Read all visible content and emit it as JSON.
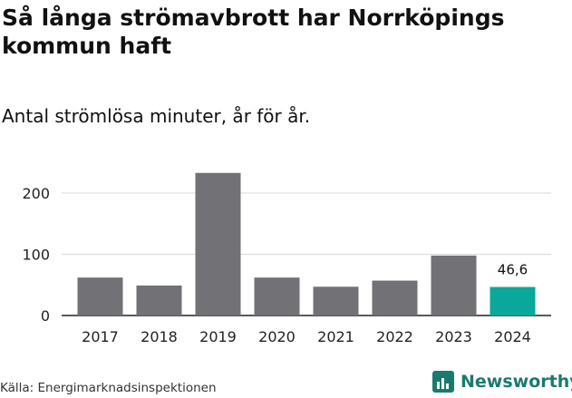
{
  "header": {
    "title": "Så långa strömavbrott har Norrköpings kommun haft",
    "subtitle": "Antal strömlösa minuter, år för år."
  },
  "chart_data": {
    "type": "bar",
    "categories": [
      "2017",
      "2018",
      "2019",
      "2020",
      "2021",
      "2022",
      "2023",
      "2024"
    ],
    "values": [
      62,
      49,
      233,
      62,
      47,
      57,
      98,
      46.6
    ],
    "value_labels": [
      "",
      "",
      "",
      "",
      "",
      "",
      "",
      "46,6"
    ],
    "yticks": [
      0,
      100,
      200
    ],
    "ytick_labels": [
      "0",
      "100",
      "200"
    ],
    "ylim": [
      0,
      240
    ],
    "grid": true,
    "highlight_index": 7,
    "colors": {
      "bar": "#727176",
      "highlight": "#0aa89a",
      "grid": "#d9d9d9",
      "axis": "#222222"
    }
  },
  "footer": {
    "source": "Källa: Energimarknadsinspektionen",
    "brand": "Newsworthy",
    "brand_color": "#1b7a6e",
    "brand_icon": "newsworthy-chart-icon"
  }
}
